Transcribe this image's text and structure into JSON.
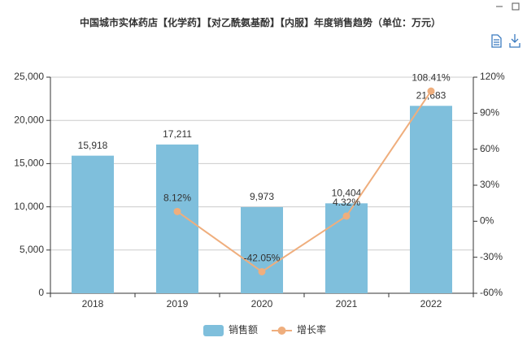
{
  "chart_data": {
    "type": "bar-line",
    "title": "中国城市实体药店【化学药】【对乙酰氨基酚】【内服】年度销售趋势（单位：万元）",
    "categories": [
      "2018",
      "2019",
      "2020",
      "2021",
      "2022"
    ],
    "series": [
      {
        "name": "销售额",
        "type": "bar",
        "color": "#7fbfdc",
        "values": [
          15918,
          17211,
          9973,
          10404,
          21683
        ],
        "value_labels": [
          "15,918",
          "17,211",
          "9,973",
          "10,404",
          "21,683"
        ]
      },
      {
        "name": "增长率",
        "type": "line",
        "axis": "y2",
        "color": "#efae7d",
        "values": [
          null,
          8.12,
          -42.05,
          4.32,
          108.41
        ],
        "value_labels": [
          null,
          "8.12%",
          "-42.05%",
          "4.32%",
          "108.41%"
        ]
      }
    ],
    "ylim": [
      0,
      25000
    ],
    "yticks": [
      0,
      {
        "value": 5000,
        "label": "5,000"
      },
      {
        "value": 10000,
        "label": "10,000"
      },
      {
        "value": 15000,
        "label": "15,000"
      },
      {
        "value": 20000,
        "label": "20,000"
      },
      {
        "value": 25000,
        "label": "25,000"
      }
    ],
    "y2lim": [
      -60,
      120
    ],
    "y2ticks": [
      {
        "value": -60,
        "label": "-60%"
      },
      {
        "value": -30,
        "label": "-30%"
      },
      {
        "value": 0,
        "label": "0%"
      },
      {
        "value": 30,
        "label": "30%"
      },
      {
        "value": 60,
        "label": "60%"
      },
      {
        "value": 90,
        "label": "90%"
      },
      {
        "value": 120,
        "label": "120%"
      }
    ],
    "grid": true,
    "legend": "bottom"
  }
}
